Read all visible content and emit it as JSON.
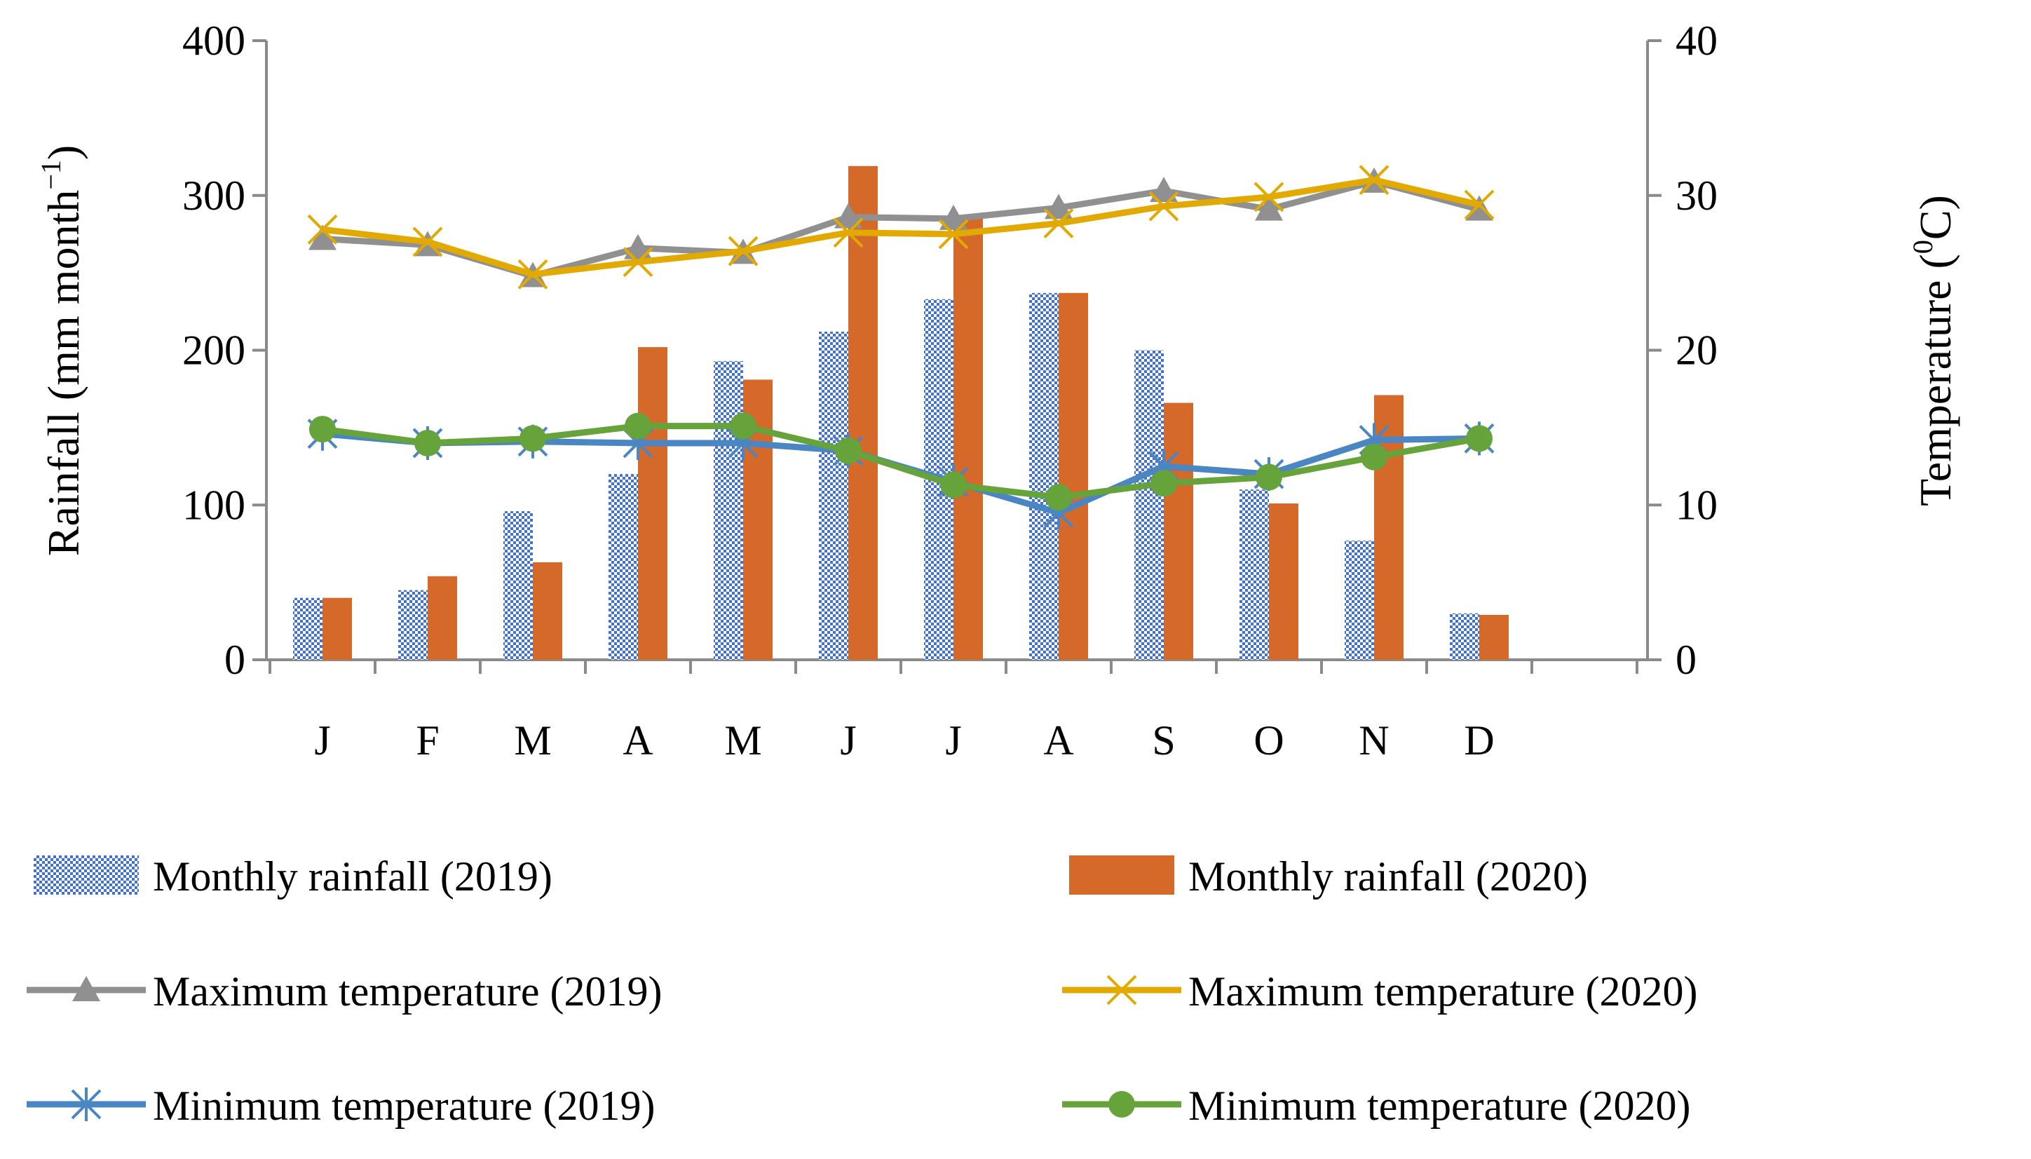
{
  "chart_data": {
    "type": "bar",
    "categories": [
      "J",
      "F",
      "M",
      "A",
      "M",
      "J",
      "J",
      "A",
      "S",
      "O",
      "N",
      "D"
    ],
    "y_left": {
      "label": "Rainfall (mm month",
      "label_sup": "−1",
      "label_close": ")",
      "ylim": [
        0,
        400
      ],
      "ticks": [
        "0",
        "100",
        "200",
        "300",
        "400"
      ]
    },
    "y_right": {
      "label": "Temperature (",
      "label_sup": "0",
      "label_close": "C)",
      "ylim": [
        0,
        40
      ],
      "ticks": [
        "0",
        "10",
        "20",
        "30",
        "40"
      ]
    },
    "grid": false,
    "legend_position": "bottom",
    "bar_series": [
      {
        "name": "Monthly rainfall  (2019)",
        "color": "#4472c4",
        "pattern": "checker",
        "values": [
          40,
          45,
          96,
          120,
          193,
          212,
          233,
          237,
          200,
          110,
          77,
          30
        ]
      },
      {
        "name": "Monthly rainfall  (2020)",
        "color": "#d4692a",
        "values": [
          40,
          54,
          63,
          202,
          181,
          319,
          285,
          237,
          166,
          101,
          171,
          29
        ]
      }
    ],
    "line_series": [
      {
        "name": "Maximum temperature  (2019)",
        "color": "#909090",
        "marker": "triangle",
        "values": [
          27.2,
          26.8,
          24.8,
          26.6,
          26.3,
          28.6,
          28.5,
          29.2,
          30.3,
          29.1,
          30.9,
          29.1
        ]
      },
      {
        "name": "Maximum temperature  (2020)",
        "color": "#e2a900",
        "marker": "x",
        "values": [
          27.8,
          27.0,
          24.9,
          25.7,
          26.4,
          27.6,
          27.5,
          28.2,
          29.3,
          29.9,
          31.0,
          29.4
        ]
      },
      {
        "name": "Minimum temperature   (2019)",
        "color": "#4a86c3",
        "marker": "star",
        "values": [
          14.6,
          14.0,
          14.1,
          14.0,
          14.0,
          13.5,
          11.5,
          9.5,
          12.5,
          12.0,
          14.2,
          14.3
        ]
      },
      {
        "name": "Minimum temperature  (2020)",
        "color": "#66a33a",
        "marker": "circle",
        "values": [
          14.9,
          14.0,
          14.3,
          15.1,
          15.1,
          13.5,
          11.3,
          10.5,
          11.4,
          11.8,
          13.1,
          14.3
        ]
      }
    ]
  }
}
